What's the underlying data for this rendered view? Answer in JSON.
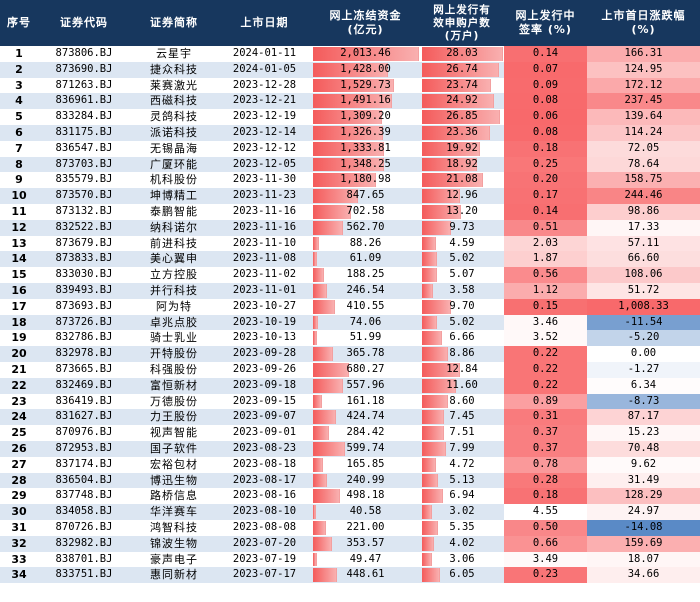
{
  "headers": {
    "idx": "序号",
    "code": "证券代码",
    "name": "证券简称",
    "date": "上市日期",
    "fund_line1": "网上冻结资金",
    "fund_line2": "(亿元)",
    "acct_line1": "网上发行有",
    "acct_line2": "效申购户数",
    "acct_line3": "(万户)",
    "rate_line1": "网上发行中",
    "rate_line2": "签率 (%)",
    "rise_line1": "上市首日涨跌幅",
    "rise_line2": "(%)"
  },
  "colors": {
    "header_bg": "#17375e",
    "row_stripe": "#dce6f2",
    "bar_red": "#f45b5b",
    "positive_rise": "#f8696b",
    "negative_rise": "#5a8ac6"
  },
  "rows": [
    {
      "idx": "1",
      "code": "873806.BJ",
      "name": "云星宇",
      "date": "2024-01-11",
      "fund": "2,013.46",
      "acct": "28.03",
      "rate": "0.14",
      "rise": "166.31"
    },
    {
      "idx": "2",
      "code": "873690.BJ",
      "name": "捷众科技",
      "date": "2024-01-05",
      "fund": "1,428.00",
      "acct": "26.74",
      "rate": "0.07",
      "rise": "124.95"
    },
    {
      "idx": "3",
      "code": "871263.BJ",
      "name": "莱赛激光",
      "date": "2023-12-28",
      "fund": "1,529.73",
      "acct": "23.74",
      "rate": "0.09",
      "rise": "172.12"
    },
    {
      "idx": "4",
      "code": "836961.BJ",
      "name": "西磁科技",
      "date": "2023-12-21",
      "fund": "1,491.16",
      "acct": "24.92",
      "rate": "0.08",
      "rise": "237.45"
    },
    {
      "idx": "5",
      "code": "833284.BJ",
      "name": "灵鸽科技",
      "date": "2023-12-19",
      "fund": "1,309.20",
      "acct": "26.85",
      "rate": "0.06",
      "rise": "139.64"
    },
    {
      "idx": "6",
      "code": "831175.BJ",
      "name": "派诺科技",
      "date": "2023-12-14",
      "fund": "1,326.39",
      "acct": "23.36",
      "rate": "0.08",
      "rise": "114.24"
    },
    {
      "idx": "7",
      "code": "836547.BJ",
      "name": "无锡晶海",
      "date": "2023-12-12",
      "fund": "1,333.81",
      "acct": "19.92",
      "rate": "0.18",
      "rise": "72.05"
    },
    {
      "idx": "8",
      "code": "873703.BJ",
      "name": "广厦环能",
      "date": "2023-12-05",
      "fund": "1,348.25",
      "acct": "18.92",
      "rate": "0.25",
      "rise": "78.64"
    },
    {
      "idx": "9",
      "code": "835579.BJ",
      "name": "机科股份",
      "date": "2023-11-30",
      "fund": "1,180.98",
      "acct": "21.08",
      "rate": "0.20",
      "rise": "158.75"
    },
    {
      "idx": "10",
      "code": "873570.BJ",
      "name": "坤博精工",
      "date": "2023-11-23",
      "fund": "847.65",
      "acct": "12.96",
      "rate": "0.17",
      "rise": "244.46"
    },
    {
      "idx": "11",
      "code": "873132.BJ",
      "name": "泰鹏智能",
      "date": "2023-11-16",
      "fund": "702.58",
      "acct": "13.20",
      "rate": "0.14",
      "rise": "98.86"
    },
    {
      "idx": "12",
      "code": "832522.BJ",
      "name": "纳科诺尔",
      "date": "2023-11-16",
      "fund": "562.70",
      "acct": "9.73",
      "rate": "0.51",
      "rise": "17.33"
    },
    {
      "idx": "13",
      "code": "873679.BJ",
      "name": "前进科技",
      "date": "2023-11-10",
      "fund": "88.26",
      "acct": "4.59",
      "rate": "2.03",
      "rise": "57.11"
    },
    {
      "idx": "14",
      "code": "873833.BJ",
      "name": "美心翼申",
      "date": "2023-11-08",
      "fund": "61.09",
      "acct": "5.02",
      "rate": "1.87",
      "rise": "66.60"
    },
    {
      "idx": "15",
      "code": "833030.BJ",
      "name": "立方控股",
      "date": "2023-11-02",
      "fund": "188.25",
      "acct": "5.07",
      "rate": "0.56",
      "rise": "108.06"
    },
    {
      "idx": "16",
      "code": "839493.BJ",
      "name": "并行科技",
      "date": "2023-11-01",
      "fund": "246.54",
      "acct": "3.58",
      "rate": "1.12",
      "rise": "51.72"
    },
    {
      "idx": "17",
      "code": "873693.BJ",
      "name": "阿为特",
      "date": "2023-10-27",
      "fund": "410.55",
      "acct": "9.70",
      "rate": "0.15",
      "rise": "1,008.33"
    },
    {
      "idx": "18",
      "code": "873726.BJ",
      "name": "卓兆点胶",
      "date": "2023-10-19",
      "fund": "74.06",
      "acct": "5.02",
      "rate": "3.46",
      "rise": "-11.54"
    },
    {
      "idx": "19",
      "code": "832786.BJ",
      "name": "骑士乳业",
      "date": "2023-10-13",
      "fund": "51.99",
      "acct": "6.66",
      "rate": "3.52",
      "rise": "-5.20"
    },
    {
      "idx": "20",
      "code": "832978.BJ",
      "name": "开特股份",
      "date": "2023-09-28",
      "fund": "365.78",
      "acct": "8.86",
      "rate": "0.22",
      "rise": "0.00"
    },
    {
      "idx": "21",
      "code": "873665.BJ",
      "name": "科强股份",
      "date": "2023-09-26",
      "fund": "680.27",
      "acct": "12.84",
      "rate": "0.22",
      "rise": "-1.27"
    },
    {
      "idx": "22",
      "code": "832469.BJ",
      "name": "富恒新材",
      "date": "2023-09-18",
      "fund": "557.96",
      "acct": "11.60",
      "rate": "0.22",
      "rise": "6.34"
    },
    {
      "idx": "23",
      "code": "836419.BJ",
      "name": "万德股份",
      "date": "2023-09-15",
      "fund": "161.18",
      "acct": "8.60",
      "rate": "0.89",
      "rise": "-8.73"
    },
    {
      "idx": "24",
      "code": "831627.BJ",
      "name": "力王股份",
      "date": "2023-09-07",
      "fund": "424.74",
      "acct": "7.45",
      "rate": "0.31",
      "rise": "87.17"
    },
    {
      "idx": "25",
      "code": "870976.BJ",
      "name": "视声智能",
      "date": "2023-09-01",
      "fund": "284.42",
      "acct": "7.51",
      "rate": "0.37",
      "rise": "15.23"
    },
    {
      "idx": "26",
      "code": "872953.BJ",
      "name": "国子软件",
      "date": "2023-08-23",
      "fund": "599.74",
      "acct": "7.99",
      "rate": "0.37",
      "rise": "70.48"
    },
    {
      "idx": "27",
      "code": "837174.BJ",
      "name": "宏裕包材",
      "date": "2023-08-18",
      "fund": "165.85",
      "acct": "4.72",
      "rate": "0.78",
      "rise": "9.62"
    },
    {
      "idx": "28",
      "code": "836504.BJ",
      "name": "博迅生物",
      "date": "2023-08-17",
      "fund": "240.99",
      "acct": "5.13",
      "rate": "0.28",
      "rise": "31.49"
    },
    {
      "idx": "29",
      "code": "837748.BJ",
      "name": "路桥信息",
      "date": "2023-08-16",
      "fund": "498.18",
      "acct": "6.94",
      "rate": "0.18",
      "rise": "128.29"
    },
    {
      "idx": "30",
      "code": "834058.BJ",
      "name": "华洋赛车",
      "date": "2023-08-10",
      "fund": "40.58",
      "acct": "3.02",
      "rate": "4.55",
      "rise": "24.97"
    },
    {
      "idx": "31",
      "code": "870726.BJ",
      "name": "鸿智科技",
      "date": "2023-08-08",
      "fund": "221.00",
      "acct": "5.35",
      "rate": "0.50",
      "rise": "-14.08"
    },
    {
      "idx": "32",
      "code": "832982.BJ",
      "name": "锦波生物",
      "date": "2023-07-20",
      "fund": "353.57",
      "acct": "4.02",
      "rate": "0.66",
      "rise": "159.69"
    },
    {
      "idx": "33",
      "code": "838701.BJ",
      "name": "豪声电子",
      "date": "2023-07-19",
      "fund": "49.47",
      "acct": "3.06",
      "rate": "3.49",
      "rise": "18.07"
    },
    {
      "idx": "34",
      "code": "833751.BJ",
      "name": "惠同新材",
      "date": "2023-07-17",
      "fund": "448.61",
      "acct": "6.05",
      "rate": "0.23",
      "rise": "34.66"
    }
  ]
}
